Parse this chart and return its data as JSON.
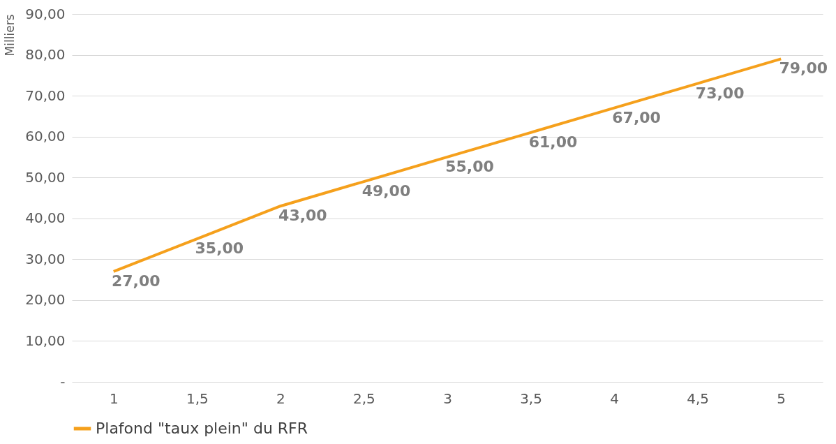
{
  "chart_data": {
    "type": "line",
    "ylabel": "Milliers",
    "x": [
      1,
      1.5,
      2,
      2.5,
      3,
      3.5,
      4,
      4.5,
      5
    ],
    "series": [
      {
        "name": "Plafond \"taux plein\" du RFR",
        "color": "#f5a01c",
        "values": [
          27,
          35,
          43,
          49,
          55,
          61,
          67,
          73,
          79
        ],
        "value_labels": [
          "27,00",
          "35,00",
          "43,00",
          "49,00",
          "55,00",
          "61,00",
          "67,00",
          "73,00",
          "79,00"
        ]
      }
    ],
    "xlim": [
      0.75,
      5.25
    ],
    "xticks": [
      1,
      {
        "value": 1.5,
        "label": "1,5"
      },
      2,
      {
        "value": 2.5,
        "label": "2,5"
      },
      3,
      {
        "value": 3.5,
        "label": "3,5"
      },
      4,
      {
        "value": 4.5,
        "label": "4,5"
      },
      5
    ],
    "ylim": [
      0,
      90
    ],
    "yticks": [
      {
        "value": 0,
        "label": "-"
      },
      {
        "value": 10,
        "label": "10,00"
      },
      {
        "value": 20,
        "label": "20,00"
      },
      {
        "value": 30,
        "label": "30,00"
      },
      {
        "value": 40,
        "label": "40,00"
      },
      {
        "value": 50,
        "label": "50,00"
      },
      {
        "value": 60,
        "label": "60,00"
      },
      {
        "value": 70,
        "label": "70,00"
      },
      {
        "value": 80,
        "label": "80,00"
      },
      {
        "value": 90,
        "label": "90,00"
      }
    ],
    "grid": "y",
    "legend": "bottom",
    "marker": "none",
    "line_style": "solid"
  }
}
